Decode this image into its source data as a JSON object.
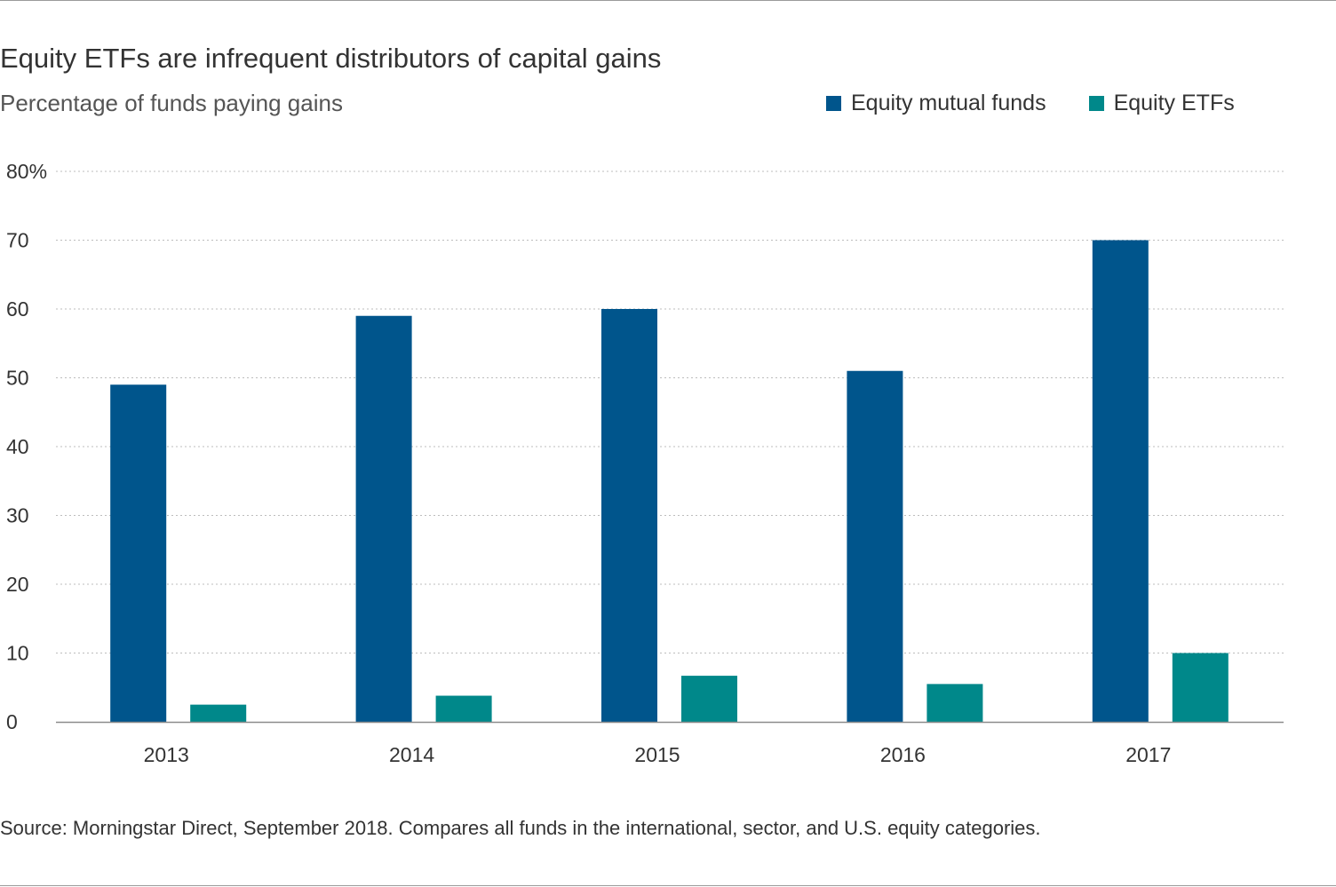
{
  "title": "Equity ETFs are infrequent distributors of capital gains",
  "subtitle": "Percentage of funds paying gains",
  "source": "Source: Morningstar Direct, September 2018. Compares all funds in the international, sector, and U.S. equity categories.",
  "chart_data": {
    "type": "bar",
    "title": "Equity ETFs are infrequent distributors of capital gains",
    "subtitle": "Percentage of funds paying gains",
    "categories": [
      "2013",
      "2014",
      "2015",
      "2016",
      "2017"
    ],
    "series": [
      {
        "name": "Equity mutual funds",
        "color": "#00558c",
        "values": [
          49,
          59,
          60,
          51,
          70
        ]
      },
      {
        "name": "Equity ETFs",
        "color": "#00888a",
        "values": [
          2.5,
          3.8,
          6.7,
          5.5,
          10
        ]
      }
    ],
    "ylim": [
      0,
      80
    ],
    "yticks": [
      0,
      10,
      20,
      30,
      40,
      50,
      60,
      70,
      80
    ],
    "ytick_labels": [
      "0",
      "10",
      "20",
      "30",
      "40",
      "50",
      "60",
      "70",
      "80%"
    ],
    "xlabel": "",
    "ylabel": "",
    "grid": true,
    "legend_position": "top-right"
  }
}
